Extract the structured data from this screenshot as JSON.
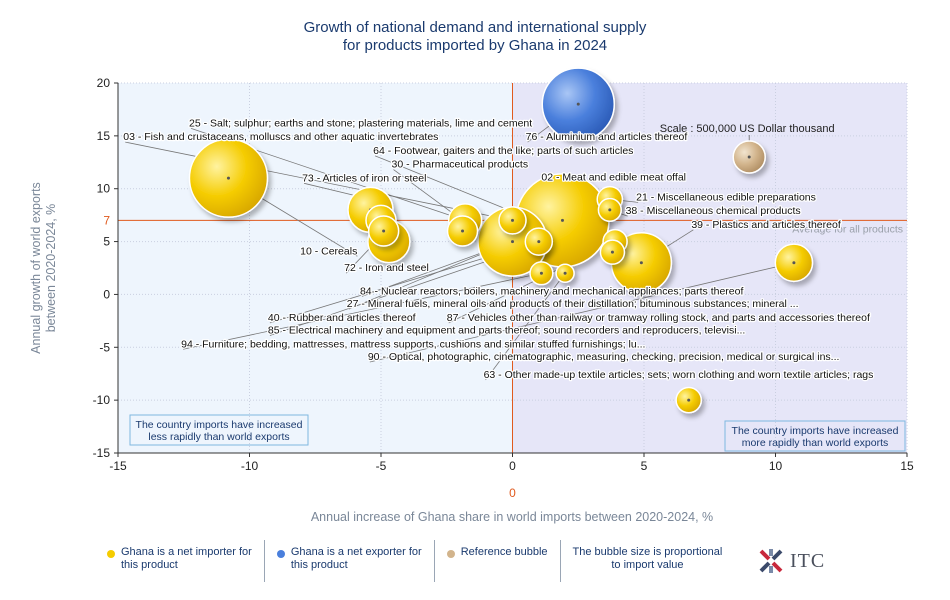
{
  "chart_data": {
    "type": "scatter",
    "title": "Growth of national demand and international supply\nfor products imported by Ghana in 2024",
    "xlabel": "Annual increase of Ghana share in world imports between 2020-2024, %",
    "ylabel": "Annual growth of world exports\nbetween 2020-2024, %",
    "xlim": [
      -15,
      15
    ],
    "ylim": [
      -15,
      20
    ],
    "xticks": [
      -15,
      -10,
      -5,
      0,
      5,
      10,
      15
    ],
    "yticks": [
      -15,
      -10,
      -5,
      0,
      5,
      10,
      15,
      20
    ],
    "reference_lines": {
      "x": 0,
      "x_label": "0",
      "y": 7,
      "y_label": "7",
      "y_line_text": "Average for all products"
    },
    "quadrant_labels": {
      "left": "The country imports have increased\nless rapidly than world exports",
      "right": "The country imports have increased\nmore rapidly than world exports"
    },
    "grid": true,
    "scale_label": "Scale : 500,000 US Dollar thousand",
    "reference_bubble": {
      "x": 9.0,
      "y": 13.0
    },
    "bubbles": [
      {
        "x": 2.5,
        "y": 18.0,
        "type": "exporter",
        "size": 1.2
      },
      {
        "x": -10.8,
        "y": 11.0,
        "type": "importer",
        "size": 1.3
      },
      {
        "x": 1.9,
        "y": 7.0,
        "type": "importer",
        "size": 1.55
      },
      {
        "x": 0.0,
        "y": 5.0,
        "type": "importer",
        "size": 1.15
      },
      {
        "x": 4.9,
        "y": 3.0,
        "type": "importer",
        "size": 1.0
      },
      {
        "x": -5.4,
        "y": 8.0,
        "type": "importer",
        "size": 0.75
      },
      {
        "x": -5.0,
        "y": 7.0,
        "type": "importer",
        "size": 0.5
      },
      {
        "x": -4.7,
        "y": 5.0,
        "type": "importer",
        "size": 0.7
      },
      {
        "x": -4.9,
        "y": 6.0,
        "type": "importer",
        "size": 0.5
      },
      {
        "x": -1.8,
        "y": 7.0,
        "type": "importer",
        "size": 0.55
      },
      {
        "x": -1.9,
        "y": 6.0,
        "type": "importer",
        "size": 0.5
      },
      {
        "x": 0.0,
        "y": 7.0,
        "type": "importer",
        "size": 0.45
      },
      {
        "x": 1.0,
        "y": 5.0,
        "type": "importer",
        "size": 0.45
      },
      {
        "x": 1.1,
        "y": 2.0,
        "type": "importer",
        "size": 0.38
      },
      {
        "x": 3.7,
        "y": 9.0,
        "type": "importer",
        "size": 0.42
      },
      {
        "x": 3.7,
        "y": 8.0,
        "type": "importer",
        "size": 0.38
      },
      {
        "x": 3.9,
        "y": 5.0,
        "type": "importer",
        "size": 0.4
      },
      {
        "x": 3.8,
        "y": 4.0,
        "type": "importer",
        "size": 0.4
      },
      {
        "x": 10.7,
        "y": 3.0,
        "type": "importer",
        "size": 0.62
      },
      {
        "x": 6.7,
        "y": -10.0,
        "type": "importer",
        "size": 0.42
      },
      {
        "x": 2.0,
        "y": 2.0,
        "type": "importer",
        "size": 0.3
      }
    ],
    "annotations": [
      {
        "text": "25 - Salt; sulphur; earths and stone; plastering materials, lime and cement",
        "tx": -12.3,
        "ty": 15.9,
        "ax": -1.8,
        "ay": 7.0,
        "align": "start"
      },
      {
        "text": "03 - Fish and crustaceans, molluscs and other aquatic invertebrates",
        "tx": -14.8,
        "ty": 14.6,
        "ax": 0.0,
        "ay": 7.0,
        "align": "start"
      },
      {
        "text": "76 - Aluminium and articles thereof",
        "tx": 0.5,
        "ty": 14.6,
        "ax": 2.5,
        "ay": 18.0,
        "align": "start"
      },
      {
        "text": "64 - Footwear, gaiters and the like; parts of such articles",
        "tx": -5.3,
        "ty": 13.3,
        "ax": 3.8,
        "ay": 4.0,
        "align": "start"
      },
      {
        "text": "30 - Pharmaceutical products",
        "tx": -4.6,
        "ty": 12.0,
        "ax": -1.9,
        "ay": 7.0,
        "align": "start"
      },
      {
        "text": "02 - Meat and edible meat offal",
        "tx": 1.1,
        "ty": 10.8,
        "ax": 0.0,
        "ay": 7.0,
        "align": "start"
      },
      {
        "text": "73 - Articles of iron or steel",
        "tx": -8.0,
        "ty": 10.7,
        "ax": -5.4,
        "ay": 9.0,
        "align": "start"
      },
      {
        "text": "21 - Miscellaneous edible preparations",
        "tx": 4.7,
        "ty": 8.9,
        "ax": 3.7,
        "ay": 9.0,
        "align": "start"
      },
      {
        "text": "38 - Miscellaneous chemical products",
        "tx": 4.3,
        "ty": 7.6,
        "ax": 3.7,
        "ay": 8.0,
        "align": "start"
      },
      {
        "text": "39 - Plastics and articles thereof",
        "tx": 6.8,
        "ty": 6.3,
        "ax": 4.9,
        "ay": 3.0,
        "align": "start"
      },
      {
        "text": "10 - Cereals",
        "tx": -5.9,
        "ty": 3.8,
        "ax": -10.8,
        "ay": 11.0,
        "align": "end"
      },
      {
        "text": "72 - Iron and steel",
        "tx": -6.4,
        "ty": 2.2,
        "ax": -4.8,
        "ay": 6.0,
        "align": "start"
      },
      {
        "text": "84 - Nuclear reactors, boilers, machinery and mechanical appliances; parts thereof",
        "tx": -5.8,
        "ty": 0.0,
        "ax": 0.0,
        "ay": 5.0,
        "align": "start"
      },
      {
        "text": "27 - Mineral fuels, mineral oils and products of their distillation; bituminous substances; mineral ...",
        "tx": -6.3,
        "ty": -1.2,
        "ax": 1.9,
        "ay": 7.0,
        "align": "start"
      },
      {
        "text": "87 - Vehicles other than railway or tramway rolling stock, and parts and accessories thereof",
        "tx": -2.5,
        "ty": -2.5,
        "ax": 3.9,
        "ay": 5.0,
        "align": "start"
      },
      {
        "text": "40 - Rubber and articles thereof",
        "tx": -9.3,
        "ty": -2.5,
        "ax": 1.0,
        "ay": 5.0,
        "align": "start"
      },
      {
        "text": "85 - Electrical machinery and equipment and parts thereof; sound recorders and reproducers, televisi...",
        "tx": -9.3,
        "ty": -3.7,
        "ax": 1.2,
        "ay": 5.0,
        "align": "start"
      },
      {
        "text": "94 - Furniture; bedding, mattresses, mattress supports, cushions and similar stuffed furnishings; lu...",
        "tx": -12.6,
        "ty": -5.0,
        "ax": 1.1,
        "ay": 2.0,
        "align": "start"
      },
      {
        "text": "90 - Optical, photographic, cinematographic, measuring, checking, precision, medical or surgical ins...",
        "tx": -5.5,
        "ty": -6.2,
        "ax": 10.7,
        "ay": 3.0,
        "align": "start"
      },
      {
        "text": "63 - Other made-up textile articles; sets; worn clothing and worn textile articles; rags",
        "tx": -1.1,
        "ty": -7.9,
        "ax": 2.0,
        "ay": 2.0,
        "align": "start"
      }
    ],
    "colors": {
      "importer": "#f5cc00",
      "exporter": "#4a7fdc",
      "reference": "#d2b48c",
      "left_bg": "#eef5fd",
      "right_bg": "#e6e6f8",
      "reference_line": "#e05a1e",
      "title": "#1a3a6e",
      "axis_label": "#7a8798"
    }
  },
  "legend": {
    "items": [
      {
        "label": "Ghana is a net importer for\nthis product",
        "color": "#f5cc00"
      },
      {
        "label": "Ghana is a net exporter for\nthis product",
        "color": "#4a7fdc"
      },
      {
        "label": "Reference bubble",
        "color": "#d2b48c"
      },
      {
        "label": "The bubble size is proportional\nto import value",
        "color": ""
      }
    ]
  },
  "logo": {
    "text": "ITC"
  }
}
